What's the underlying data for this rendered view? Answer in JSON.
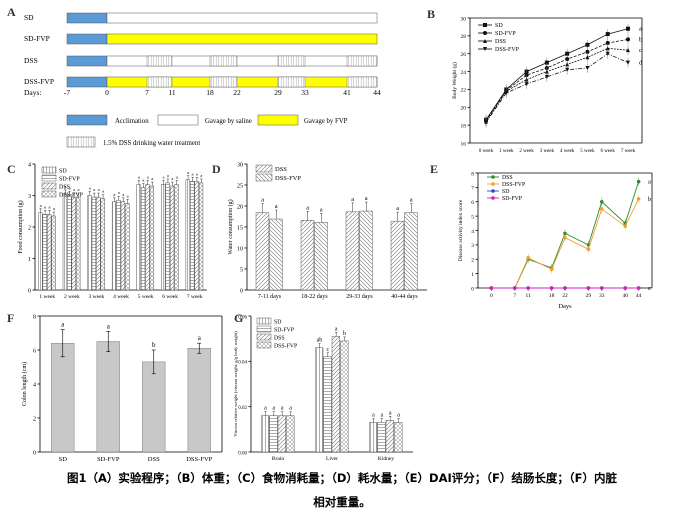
{
  "colors": {
    "acclimation": "#5b9bd5",
    "fvp": "#ffff00",
    "saline": "#ffffff",
    "dss_hatch": "#bbbbbb",
    "bar_gray": "#c8c8c8",
    "E_series": [
      "#2e8b2e",
      "#f0a030",
      "#4040c0",
      "#d020c0"
    ]
  },
  "icons": {
    "B_markers": [
      "square",
      "circle",
      "triangle-up",
      "triangle-down"
    ],
    "C_patterns": [
      "vertical-lines",
      "horizontal-lines",
      "diagonal-lines",
      "cross-hatch"
    ],
    "D_patterns": [
      "diagonal-lines",
      "back-diagonal-lines"
    ],
    "G_patterns": [
      "vertical-lines",
      "horizontal-lines",
      "diagonal-lines",
      "cross-hatch"
    ]
  },
  "A": {
    "label": "A",
    "groups": [
      "SD",
      "SD-FVP",
      "DSS",
      "DSS-FVP"
    ],
    "days_label": "Days:",
    "days": [
      "-7",
      "0",
      "7",
      "11",
      "18",
      "22",
      "29",
      "33",
      "41",
      "44"
    ],
    "legend": {
      "acclimation": "Acclimation",
      "saline": "Gavage by saline",
      "fvp": "Gavage by FVP",
      "dss": "1.5% DSS drinking water treatment"
    }
  },
  "B": {
    "label": "B",
    "chart_data": {
      "type": "line",
      "categories": [
        "0 week",
        "1 week",
        "2 week",
        "3 week",
        "4 week",
        "5 week",
        "6 week",
        "7 week"
      ],
      "ylabel": "Body Weight (g)",
      "ylim": [
        16,
        30
      ],
      "yticks": [
        16,
        18,
        20,
        22,
        24,
        26,
        28,
        30
      ],
      "series": [
        {
          "name": "SD",
          "values": [
            18.6,
            22.0,
            24.0,
            25.0,
            26.0,
            27.0,
            28.2,
            28.8
          ],
          "letter": "a"
        },
        {
          "name": "SD-FVP",
          "values": [
            18.5,
            21.9,
            23.6,
            24.4,
            25.4,
            26.2,
            27.2,
            27.6
          ],
          "letter": "b"
        },
        {
          "name": "DSS",
          "values": [
            18.4,
            21.8,
            23.1,
            24.0,
            24.8,
            25.6,
            26.6,
            26.4
          ],
          "letter": "c"
        },
        {
          "name": "DSS-FVP",
          "values": [
            18.3,
            21.6,
            22.6,
            23.4,
            24.2,
            24.4,
            26.0,
            25.0
          ],
          "letter": "d"
        }
      ]
    }
  },
  "C": {
    "label": "C",
    "chart_data": {
      "type": "bar",
      "categories": [
        "1 week",
        "2 week",
        "3 week",
        "4 week",
        "5 week",
        "6 week",
        "7 week"
      ],
      "ylabel": "Food consumption (g)",
      "ylim": [
        0,
        4
      ],
      "yticks": [
        0,
        1,
        2,
        3,
        4
      ],
      "series": [
        {
          "name": "SD",
          "values": [
            2.45,
            3.05,
            3.0,
            2.8,
            3.35,
            3.35,
            3.5
          ]
        },
        {
          "name": "SD-FVP",
          "values": [
            2.4,
            3.0,
            2.95,
            2.85,
            3.25,
            3.4,
            3.45
          ]
        },
        {
          "name": "DSS",
          "values": [
            2.4,
            2.95,
            2.95,
            2.8,
            3.35,
            3.3,
            3.45
          ]
        },
        {
          "name": "DSS-FVP",
          "values": [
            2.35,
            2.95,
            2.9,
            2.75,
            3.3,
            3.35,
            3.4
          ]
        }
      ],
      "bar_letter": "a"
    }
  },
  "D": {
    "label": "D",
    "chart_data": {
      "type": "bar",
      "categories": [
        "7-11 days",
        "18-22 days",
        "29-33 days",
        "40-44 days"
      ],
      "ylabel": "Water consumption (g)",
      "ylim": [
        0,
        30
      ],
      "yticks": [
        0,
        5,
        10,
        15,
        20,
        25,
        30
      ],
      "series": [
        {
          "name": "DSS",
          "values": [
            18.4,
            16.6,
            18.6,
            16.4
          ]
        },
        {
          "name": "DSS-FVP",
          "values": [
            16.9,
            16.1,
            18.8,
            18.4
          ]
        }
      ],
      "bar_letter": "a"
    }
  },
  "E": {
    "label": "E",
    "chart_data": {
      "type": "line",
      "x": [
        0,
        7,
        11,
        18,
        22,
        29,
        33,
        40,
        44
      ],
      "xlabel": "Days",
      "ylabel": "Disease activity index score",
      "ylim": [
        0,
        8
      ],
      "yticks": [
        0,
        1,
        2,
        3,
        4,
        5,
        6,
        7,
        8
      ],
      "series": [
        {
          "name": "DSS",
          "values": [
            0,
            0,
            2.0,
            1.4,
            3.8,
            3.0,
            6.0,
            4.5,
            7.4
          ],
          "letter": "a"
        },
        {
          "name": "DSS-FVP",
          "values": [
            0,
            0,
            2.1,
            1.3,
            3.5,
            2.7,
            5.5,
            4.3,
            6.2
          ],
          "letter": "b"
        },
        {
          "name": "SD",
          "values": [
            0,
            0,
            0,
            0,
            0,
            0,
            0,
            0,
            0
          ],
          "letter": "c"
        },
        {
          "name": "SD-FVP",
          "values": [
            0,
            0,
            0,
            0,
            0,
            0,
            0,
            0,
            0
          ],
          "letter": ""
        }
      ]
    }
  },
  "F": {
    "label": "F",
    "chart_data": {
      "type": "bar",
      "categories": [
        "SD",
        "SD-FVP",
        "DSS",
        "DSS-FVP"
      ],
      "ylabel": "Colon length (cm)",
      "ylim": [
        0,
        8
      ],
      "yticks": [
        0,
        2,
        4,
        6,
        8
      ],
      "values": [
        6.4,
        6.5,
        5.3,
        6.1
      ],
      "errors": [
        0.8,
        0.6,
        0.7,
        0.3
      ],
      "letters": [
        "a",
        "a",
        "b",
        "a"
      ]
    }
  },
  "G": {
    "label": "G",
    "chart_data": {
      "type": "bar",
      "categories": [
        "Brain",
        "Liver",
        "Kidney"
      ],
      "ylabel": "Viscera relative weight (viscera weight, g/g body weight)",
      "ylim": [
        0,
        0.06
      ],
      "yticks": [
        0.0,
        0.02,
        0.04,
        0.06
      ],
      "ytick_labels": [
        "0.00",
        "0.02",
        "0.04",
        "0.06"
      ],
      "series": [
        {
          "name": "SD",
          "values": [
            0.016,
            0.046,
            0.013
          ]
        },
        {
          "name": "SD-FVP",
          "values": [
            0.016,
            0.042,
            0.013
          ]
        },
        {
          "name": "DSS",
          "values": [
            0.016,
            0.051,
            0.014
          ]
        },
        {
          "name": "DSS-FVP",
          "values": [
            0.016,
            0.049,
            0.013
          ]
        }
      ],
      "letters": [
        [
          "a",
          "a",
          "a",
          "a"
        ],
        [
          "ab",
          "c",
          "a",
          "b"
        ],
        [
          "a",
          "a",
          "a",
          "a"
        ]
      ]
    }
  },
  "caption": {
    "line1": "图1（A）实验程序；（B）体重；（C）食物消耗量；（D）耗水量；（E）DAI评分；（F）结肠长度；（F）内脏",
    "line2": "相对重量。"
  }
}
